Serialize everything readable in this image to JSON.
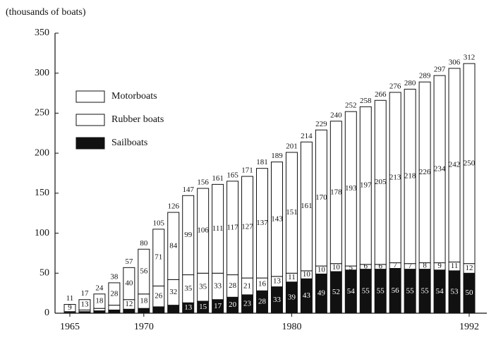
{
  "chart_data": {
    "type": "stacked-bar",
    "y_label": "(thousands of boats)",
    "categories": [
      "1965",
      null,
      null,
      null,
      null,
      "1970",
      null,
      null,
      null,
      null,
      null,
      null,
      null,
      null,
      null,
      "1980",
      null,
      null,
      null,
      null,
      null,
      null,
      null,
      null,
      null,
      null,
      null,
      "1992"
    ],
    "series": [
      {
        "name": "Sailboats",
        "color": "#111111",
        "values": [
          1,
          2,
          3,
          4,
          5,
          6,
          8,
          10,
          13,
          15,
          17,
          20,
          23,
          28,
          33,
          39,
          43,
          49,
          52,
          54,
          55,
          55,
          56,
          55,
          55,
          54,
          53,
          50
        ],
        "value_labels": [
          null,
          null,
          null,
          null,
          null,
          null,
          null,
          null,
          "13",
          "15",
          "17",
          "20",
          "23",
          "28",
          "33",
          "39",
          "43",
          "49",
          "52",
          "54",
          "55",
          "55",
          "56",
          "55",
          "55",
          "54",
          "53",
          "50"
        ]
      },
      {
        "name": "Rubber boats",
        "color": "#ffffff",
        "values": [
          1,
          2,
          3,
          6,
          12,
          18,
          26,
          32,
          35,
          35,
          33,
          28,
          21,
          16,
          13,
          11,
          10,
          10,
          10,
          5,
          6,
          6,
          7,
          7,
          8,
          9,
          11,
          12
        ],
        "value_labels": [
          null,
          null,
          null,
          null,
          "12",
          "18",
          "26",
          "32",
          "35",
          "35",
          "33",
          "28",
          "21",
          "16",
          "13",
          "11",
          "10",
          "10",
          "10",
          "5",
          "6",
          "6",
          "7",
          "7",
          "8",
          "9",
          "11",
          "12"
        ]
      },
      {
        "name": "Motorboats",
        "color": "#ffffff",
        "values": [
          9,
          13,
          18,
          28,
          40,
          56,
          71,
          84,
          99,
          106,
          111,
          117,
          127,
          137,
          143,
          151,
          161,
          170,
          178,
          193,
          197,
          205,
          213,
          218,
          226,
          234,
          242,
          250
        ]
      }
    ],
    "totals": [
      11,
      17,
      24,
      38,
      57,
      80,
      105,
      126,
      147,
      156,
      161,
      165,
      171,
      181,
      189,
      201,
      214,
      229,
      240,
      252,
      258,
      266,
      276,
      280,
      289,
      297,
      306,
      312
    ],
    "ylim": [
      0,
      350
    ],
    "yticks": [
      0,
      50,
      100,
      150,
      200,
      250,
      300,
      350
    ]
  }
}
